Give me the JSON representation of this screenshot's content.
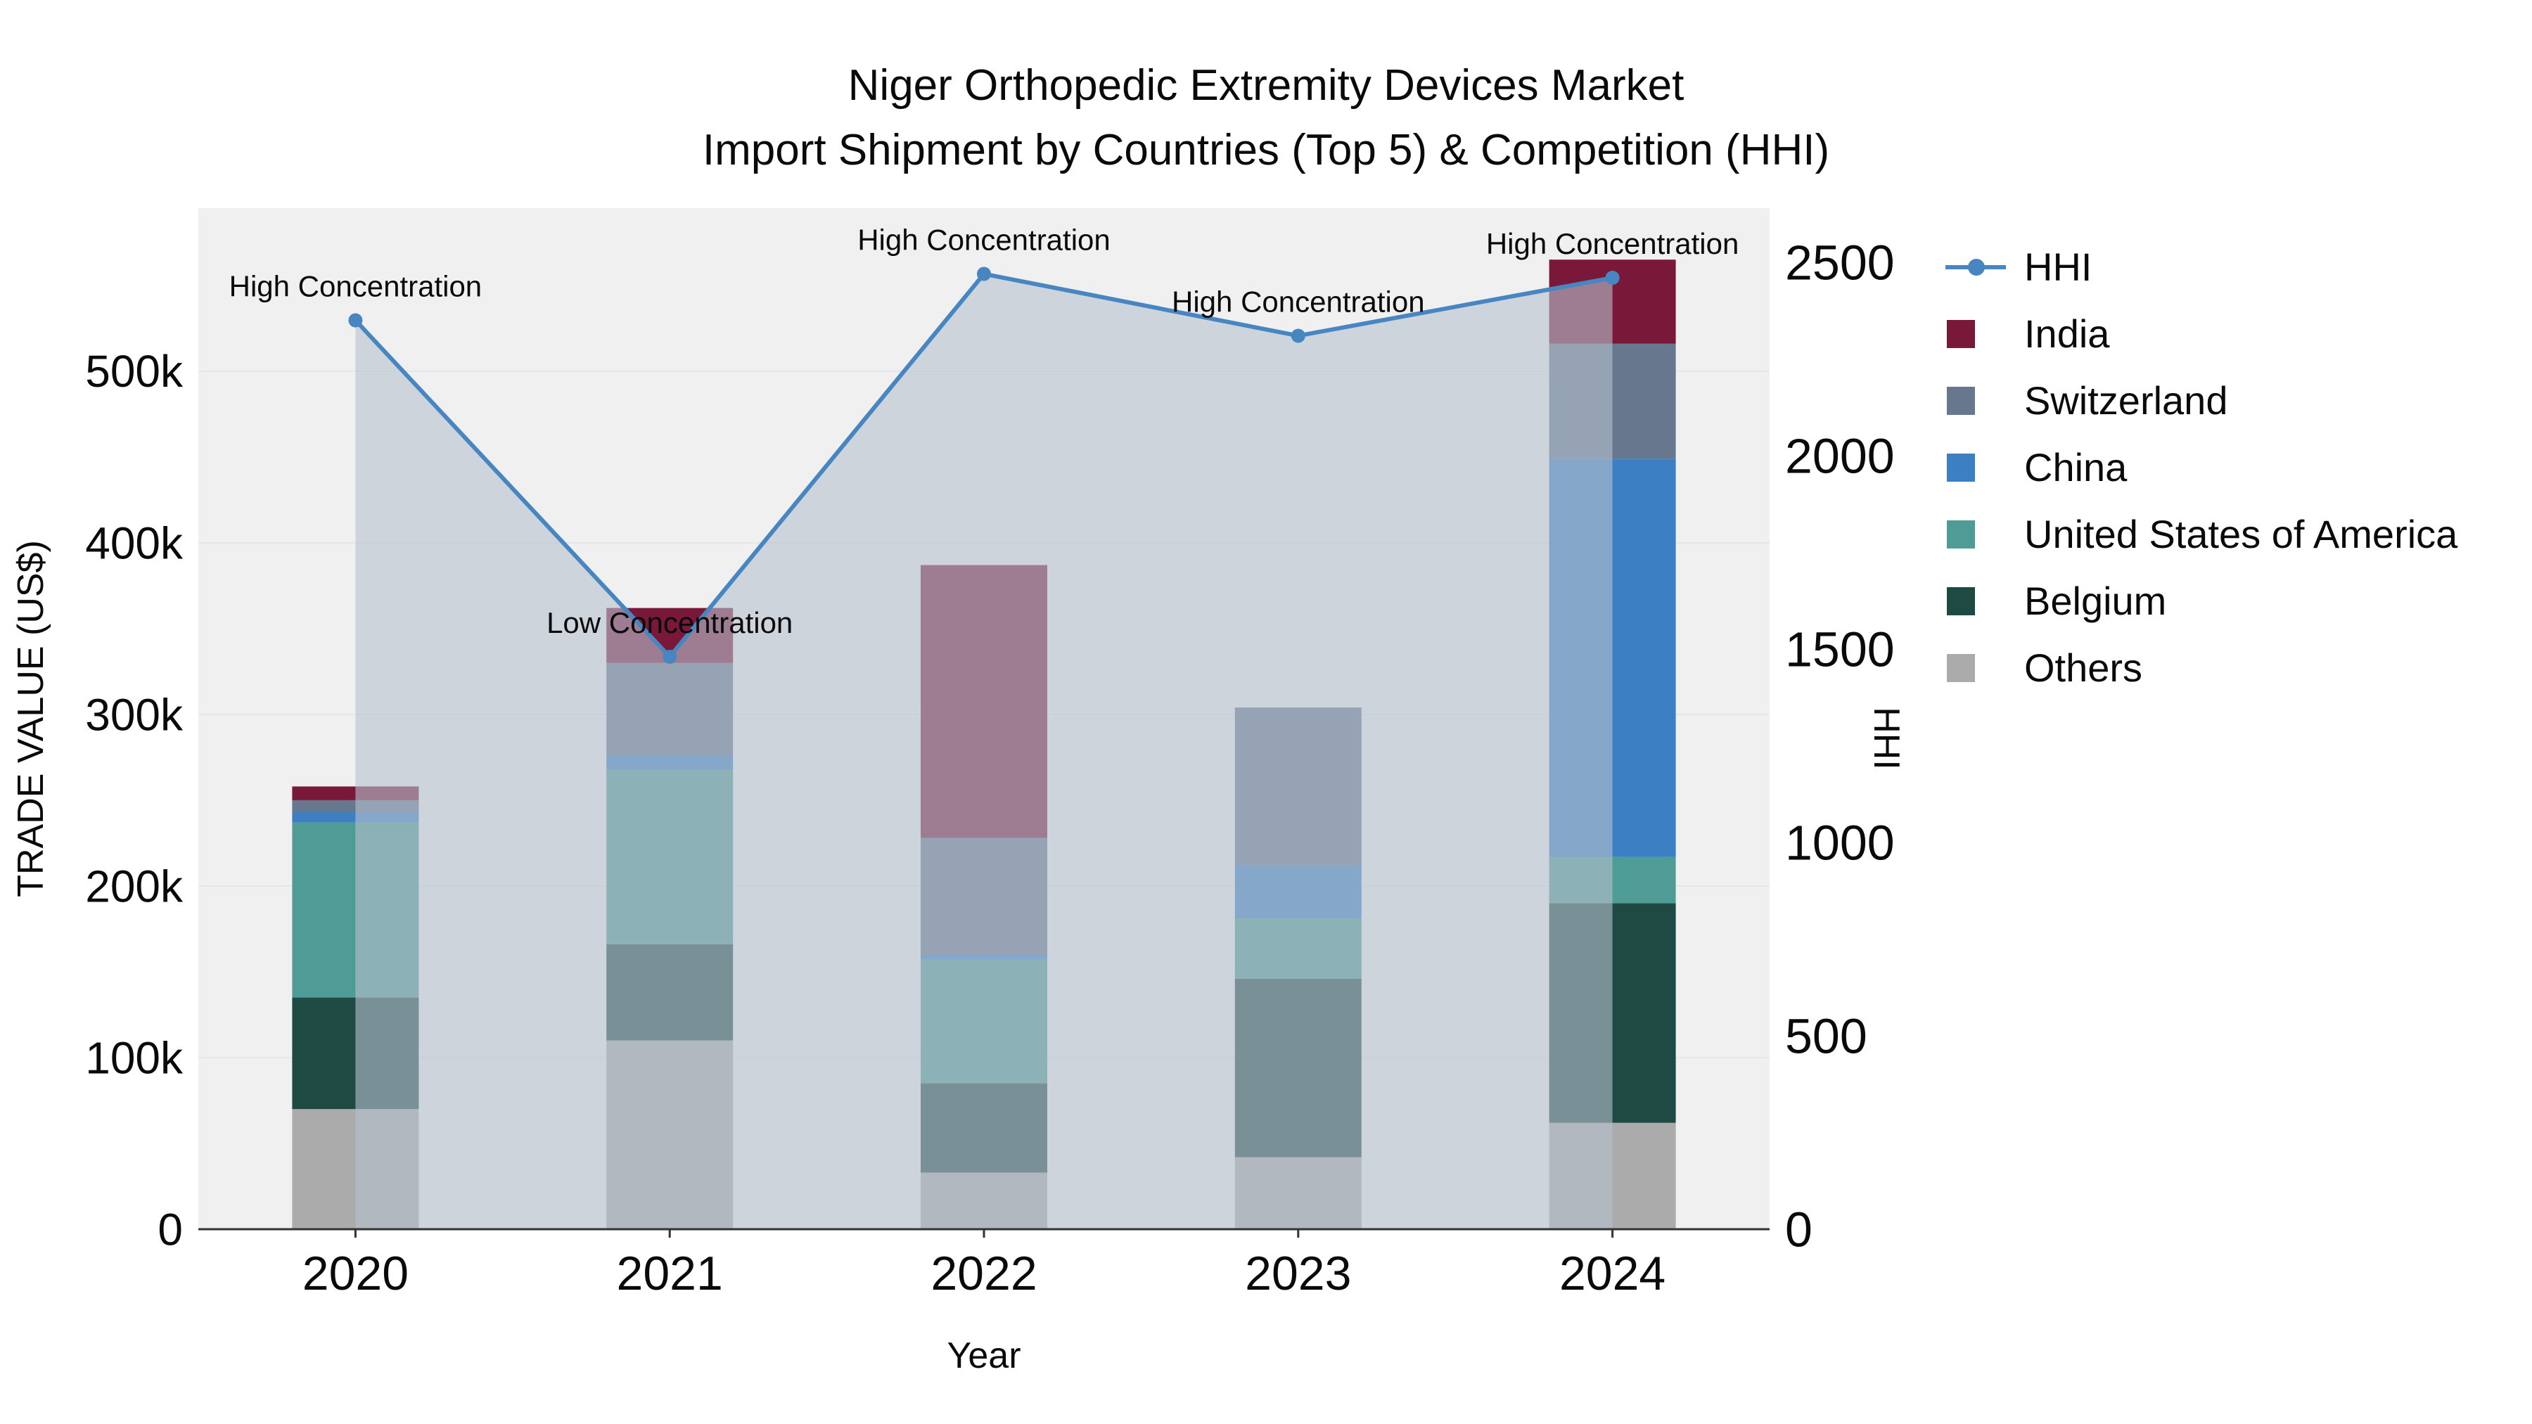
{
  "title": {
    "line1": "Niger Orthopedic Extremity Devices Market",
    "line2": "Import Shipment by Countries (Top 5) & Competition (HHI)"
  },
  "chart_data": {
    "type": "stacked-bar+line",
    "categories": [
      "2020",
      "2021",
      "2022",
      "2023",
      "2024"
    ],
    "xlabel": "Year",
    "ylabel_left": "TRADE VALUE (US$)",
    "ylabel_right": "HHI",
    "ylim_left": [
      0,
      595000
    ],
    "ylim_right": [
      0,
      2640
    ],
    "plot_bg": "#f0f0f1",
    "grid_color": "#e4e6e9",
    "legend_position": "right",
    "series": [
      {
        "name": "Others",
        "color": "#ababab",
        "values": [
          70000,
          110000,
          33000,
          42000,
          62000
        ]
      },
      {
        "name": "Belgium",
        "color": "#1f4a43",
        "values": [
          65000,
          56000,
          52000,
          104000,
          128000
        ]
      },
      {
        "name": "United States of America",
        "color": "#4f9c96",
        "values": [
          102000,
          102000,
          72000,
          35000,
          27000
        ]
      },
      {
        "name": "China",
        "color": "#3c80c3",
        "values": [
          6000,
          8000,
          3000,
          31000,
          232000
        ]
      },
      {
        "name": "Switzerland",
        "color": "#66778e",
        "values": [
          7000,
          54000,
          68000,
          92000,
          67000
        ]
      },
      {
        "name": "India",
        "color": "#7a1839",
        "values": [
          8000,
          32000,
          159000,
          0,
          49000
        ]
      }
    ],
    "line_series": {
      "name": "HHI",
      "axis": "right",
      "color": "#4886c2",
      "area_fill": "#b5c1cf",
      "area_opacity": 0.6,
      "values": [
        2350,
        1480,
        2470,
        2310,
        2460
      ]
    },
    "annotations": [
      "High Concentration",
      "Low Concentration",
      "High Concentration",
      "High Concentration",
      "High Concentration"
    ],
    "left_ticks": [
      {
        "label": "0",
        "value": 0
      },
      {
        "label": "100k",
        "value": 100000
      },
      {
        "label": "200k",
        "value": 200000
      },
      {
        "label": "300k",
        "value": 300000
      },
      {
        "label": "400k",
        "value": 400000
      },
      {
        "label": "500k",
        "value": 500000
      }
    ],
    "right_ticks": [
      {
        "label": "0",
        "value": 0
      },
      {
        "label": "500",
        "value": 500
      },
      {
        "label": "1000",
        "value": 1000
      },
      {
        "label": "1500",
        "value": 1500
      },
      {
        "label": "2000",
        "value": 2000
      },
      {
        "label": "2500",
        "value": 2500
      }
    ]
  }
}
